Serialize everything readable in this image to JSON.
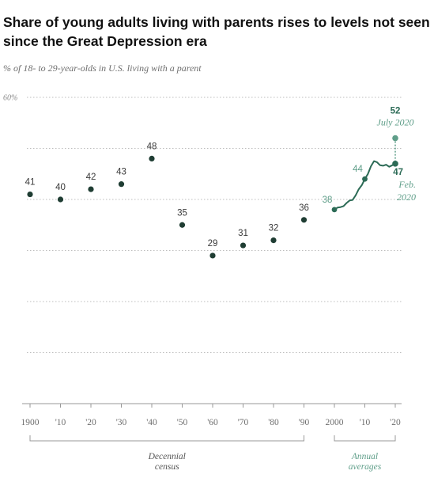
{
  "chart_data": {
    "type": "scatter",
    "title": "Share of young adults living with parents rises to levels not seen since the Great Depression era",
    "subtitle": "% of 18- to 29-year-olds in U.S. living with a parent",
    "y_axis": {
      "max_label": "60%",
      "ylim": [
        0,
        60
      ],
      "gridlines": [
        0,
        10,
        20,
        30,
        40,
        50,
        60
      ]
    },
    "x_axis": {
      "xlim": [
        1900,
        2020
      ],
      "tick_values": [
        1900,
        1910,
        1920,
        1930,
        1940,
        1950,
        1960,
        1970,
        1980,
        1990,
        2000,
        2010,
        2020
      ],
      "tick_labels": [
        "1900",
        "'10",
        "'20",
        "'30",
        "'40",
        "'50",
        "'60",
        "'70",
        "'80",
        "'90",
        "2000",
        "'10",
        "'20"
      ]
    },
    "series": [
      {
        "group": "Decennial census",
        "style": "points",
        "x": [
          1900,
          1910,
          1920,
          1930,
          1940,
          1950,
          1960,
          1970,
          1980,
          1990
        ],
        "y": [
          41,
          40,
          42,
          43,
          48,
          35,
          29,
          31,
          32,
          36
        ],
        "labels": [
          "41",
          "40",
          "42",
          "43",
          "48",
          "35",
          "29",
          "31",
          "32",
          "36"
        ]
      },
      {
        "group": "Annual averages",
        "style": "line",
        "x": [
          2000,
          2001,
          2002,
          2003,
          2004,
          2005,
          2006,
          2007,
          2008,
          2009,
          2010,
          2011,
          2012,
          2013,
          2014,
          2015,
          2016,
          2017,
          2018,
          2019,
          2020
        ],
        "y": [
          38,
          38.4,
          38.5,
          38.7,
          39.3,
          39.8,
          39.9,
          40.8,
          42,
          42.8,
          44,
          45,
          46.5,
          47.5,
          47.3,
          46.7,
          46.6,
          46.8,
          46.4,
          46.7,
          47
        ]
      }
    ],
    "point_labels": [
      {
        "x": 2000,
        "y": 38,
        "label": "38"
      },
      {
        "x": 2010,
        "y": 44,
        "label": "44"
      }
    ],
    "annotations": [
      {
        "x": 2020,
        "y": 52,
        "value": "52",
        "text": "July 2020"
      },
      {
        "x": 2020,
        "y": 47,
        "value": "47",
        "text_lines": [
          "Feb.",
          "2020"
        ]
      }
    ],
    "groups": [
      {
        "label_lines": [
          "Decennial",
          "census"
        ],
        "from": 1900,
        "to": 1990
      },
      {
        "label_lines": [
          "Annual",
          "averages"
        ],
        "from": 2000,
        "to": 2020
      }
    ],
    "colors": {
      "point": "#1f3d33",
      "line": "#2c6b56",
      "highlight": "#5f9e89",
      "grid": "#bdbdbd"
    }
  }
}
